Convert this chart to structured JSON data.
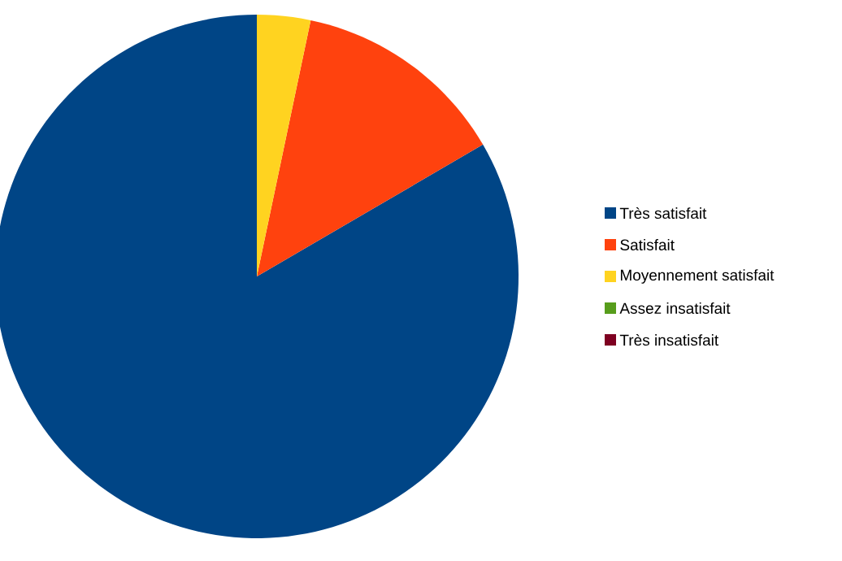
{
  "chart_data": {
    "type": "pie",
    "categories": [
      "Très satisfait",
      "Satisfait",
      "Moyennement satisfait",
      "Assez insatisfait",
      "Très insatisfait"
    ],
    "values": [
      83.4,
      13.3,
      3.3,
      0,
      0
    ],
    "colors": [
      "#004586",
      "#ff420e",
      "#ffd320",
      "#579d1c",
      "#7e0021"
    ],
    "legend": "right"
  }
}
